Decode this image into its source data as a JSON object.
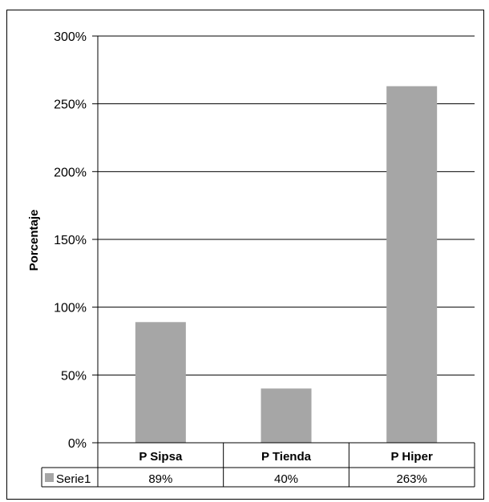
{
  "chart_data": {
    "type": "bar",
    "title": "",
    "xlabel": "",
    "ylabel": "Porcentaje",
    "categories": [
      "P Sipsa",
      "P Tienda",
      "P Hiper"
    ],
    "series": [
      {
        "name": "Serie1",
        "values": [
          89,
          40,
          263
        ],
        "display": [
          "89%",
          "40%",
          "263%"
        ]
      }
    ],
    "ylim": [
      0,
      300
    ],
    "y_ticks": [
      0,
      50,
      100,
      150,
      200,
      250,
      300
    ],
    "y_tick_labels": [
      "0%",
      "50%",
      "100%",
      "150%",
      "200%",
      "250%",
      "300%"
    ],
    "grid": true,
    "legend": "data-table",
    "bar_color": "#a6a6a6"
  }
}
